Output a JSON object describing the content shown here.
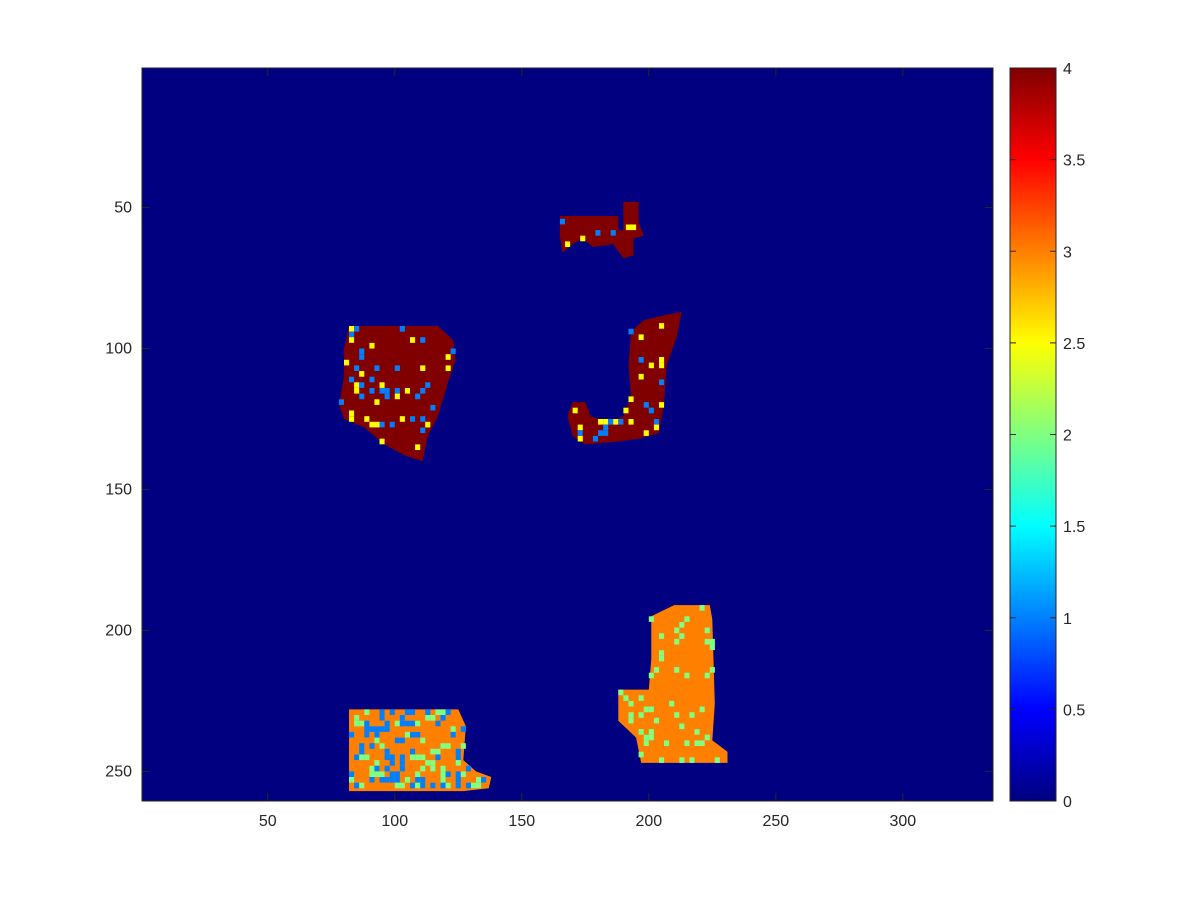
{
  "chart_data": {
    "type": "heatmap",
    "title": "",
    "xlabel": "",
    "ylabel": "",
    "xlim": [
      0.5,
      335.5
    ],
    "ylim": [
      0.5,
      260.5
    ],
    "y_reversed": true,
    "grid": false,
    "x_ticks": [
      50,
      100,
      150,
      200,
      250,
      300
    ],
    "y_ticks": [
      50,
      100,
      150,
      200,
      250
    ],
    "background_value": 0,
    "colormap": "jet",
    "colorbar": {
      "location": "right",
      "limits": [
        0,
        4
      ],
      "ticks": [
        0,
        0.5,
        1,
        1.5,
        2,
        2.5,
        3,
        3.5,
        4
      ],
      "tick_labels": [
        "0",
        "0.5",
        "1",
        "1.5",
        "2",
        "2.5",
        "3",
        "3.5",
        "4"
      ]
    },
    "regions": [
      {
        "id": "top-small-region",
        "dominant_value": 4,
        "speckle_values": [
          1,
          2.5
        ],
        "outline": [
          [
            165,
            53
          ],
          [
            188,
            53
          ],
          [
            188,
            58
          ],
          [
            190,
            58
          ],
          [
            190,
            48
          ],
          [
            196,
            48
          ],
          [
            196,
            55
          ],
          [
            198,
            60
          ],
          [
            194,
            61
          ],
          [
            194,
            67
          ],
          [
            190,
            68
          ],
          [
            186,
            63
          ],
          [
            178,
            64
          ],
          [
            174,
            61
          ],
          [
            170,
            63
          ],
          [
            166,
            66
          ],
          [
            165,
            60
          ]
        ]
      },
      {
        "id": "left-middle-region",
        "dominant_value": 4,
        "speckle_values": [
          1,
          2.5
        ],
        "outline": [
          [
            82,
            92
          ],
          [
            117,
            92
          ],
          [
            123,
            97
          ],
          [
            124,
            104
          ],
          [
            121,
            112
          ],
          [
            117,
            124
          ],
          [
            113,
            131
          ],
          [
            111,
            140
          ],
          [
            104,
            138
          ],
          [
            96,
            134
          ],
          [
            88,
            128
          ],
          [
            80,
            125
          ],
          [
            78,
            120
          ],
          [
            80,
            110
          ],
          [
            80,
            100
          ]
        ]
      },
      {
        "id": "j-shaped-region",
        "dominant_value": 4,
        "speckle_values": [
          1,
          2.5
        ],
        "outline": [
          [
            193,
            94
          ],
          [
            198,
            90
          ],
          [
            207,
            88
          ],
          [
            213,
            87
          ],
          [
            211,
            96
          ],
          [
            207,
            106
          ],
          [
            206,
            120
          ],
          [
            204,
            130
          ],
          [
            196,
            132
          ],
          [
            188,
            133
          ],
          [
            175,
            134
          ],
          [
            170,
            131
          ],
          [
            168,
            124
          ],
          [
            170,
            119
          ],
          [
            175,
            119
          ],
          [
            177,
            124
          ],
          [
            184,
            126
          ],
          [
            190,
            124
          ],
          [
            193,
            117
          ],
          [
            192,
            106
          ]
        ]
      },
      {
        "id": "bottom-left-region",
        "dominant_value": 3,
        "speckle_values": [
          2,
          1
        ],
        "outline": [
          [
            82,
            228
          ],
          [
            125,
            228
          ],
          [
            128,
            234
          ],
          [
            127,
            246
          ],
          [
            132,
            250
          ],
          [
            138,
            252
          ],
          [
            137,
            256
          ],
          [
            127,
            257
          ],
          [
            82,
            257
          ]
        ]
      },
      {
        "id": "bottom-right-region",
        "dominant_value": 3,
        "speckle_values": [
          2
        ],
        "outline": [
          [
            201,
            195
          ],
          [
            210,
            191
          ],
          [
            224,
            191
          ],
          [
            225,
            196
          ],
          [
            226,
            226
          ],
          [
            225,
            239
          ],
          [
            231,
            243
          ],
          [
            231,
            247
          ],
          [
            197,
            247
          ],
          [
            195,
            238
          ],
          [
            188,
            232
          ],
          [
            188,
            221
          ],
          [
            200,
            221
          ],
          [
            201,
            210
          ]
        ]
      }
    ]
  }
}
